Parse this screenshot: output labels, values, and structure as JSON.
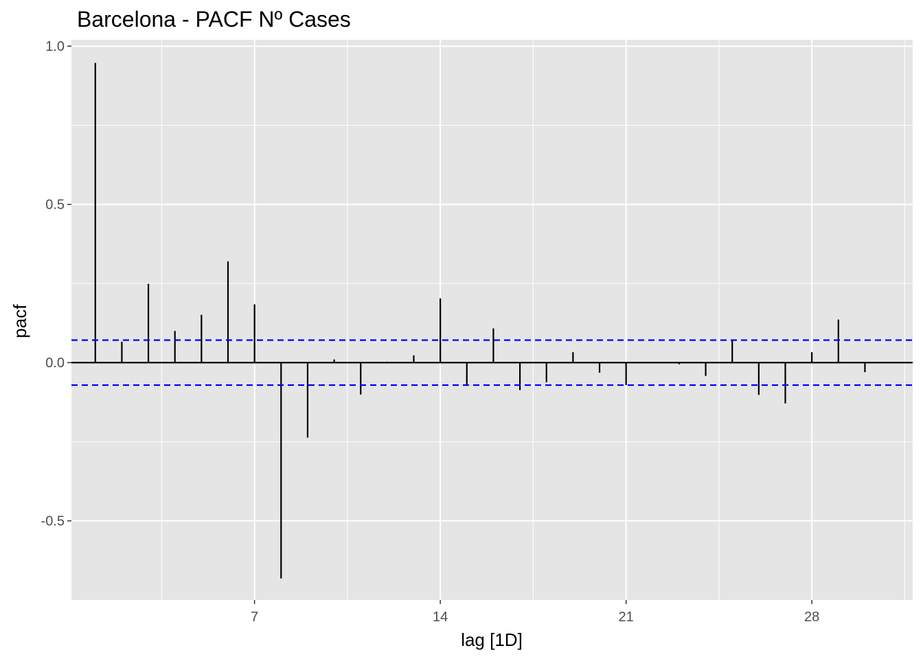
{
  "chart_data": {
    "type": "bar",
    "title": "Barcelona - PACF Nº Cases",
    "xlabel": "lag [1D]",
    "ylabel": "pacf",
    "x": [
      1,
      2,
      3,
      4,
      5,
      6,
      7,
      8,
      9,
      10,
      11,
      12,
      13,
      14,
      15,
      16,
      17,
      18,
      19,
      20,
      21,
      22,
      23,
      24,
      25,
      26,
      27,
      28,
      29,
      30
    ],
    "values": [
      0.947,
      0.066,
      0.249,
      0.1,
      0.151,
      0.32,
      0.184,
      -0.682,
      -0.237,
      0.01,
      -0.101,
      0.003,
      0.023,
      0.203,
      -0.072,
      0.108,
      -0.087,
      -0.062,
      0.033,
      -0.032,
      -0.071,
      0.0,
      -0.005,
      -0.042,
      0.07,
      -0.102,
      -0.129,
      0.033,
      0.136,
      -0.03
    ],
    "confidence_bound": 0.071,
    "xlim": [
      0.1,
      31.8
    ],
    "ylim": [
      -0.75,
      1.02
    ],
    "x_ticks": [
      7,
      14,
      21,
      28
    ],
    "x_tick_labels": [
      "7",
      "14",
      "21",
      "28"
    ],
    "y_ticks": [
      1.0,
      0.5,
      0.0,
      -0.5
    ],
    "y_tick_labels": [
      "1.0",
      "0.5",
      "0.0",
      "-0.5"
    ],
    "grid": true,
    "colors": {
      "panel_background": "#e5e5e5",
      "grid": "#ffffff",
      "spike": "#000000",
      "confidence_line": "#0000ff",
      "zero_line": "#000000"
    }
  }
}
